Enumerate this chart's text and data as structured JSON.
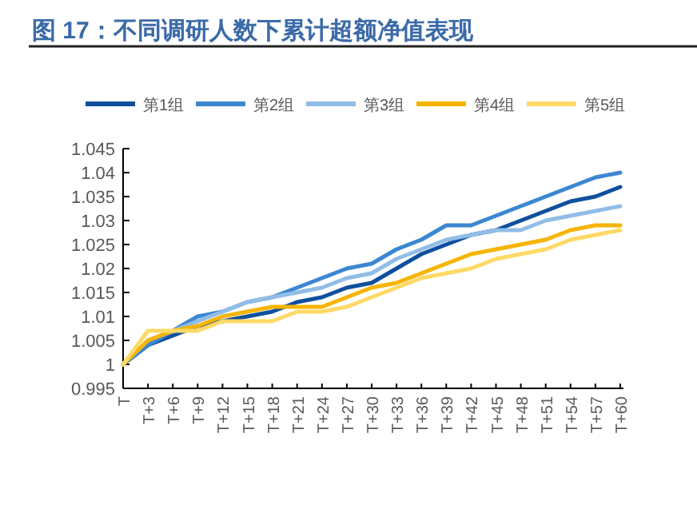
{
  "chart_data": {
    "type": "line",
    "title": "图 17：不同调研人数下累计超额净值表现",
    "categories": [
      "T",
      "T+3",
      "T+6",
      "T+9",
      "T+12",
      "T+15",
      "T+18",
      "T+21",
      "T+24",
      "T+27",
      "T+30",
      "T+33",
      "T+36",
      "T+39",
      "T+42",
      "T+45",
      "T+48",
      "T+51",
      "T+54",
      "T+57",
      "T+60"
    ],
    "series": [
      {
        "name": "第1组",
        "color": "#0f4f9e",
        "values": [
          1.0,
          1.004,
          1.006,
          1.008,
          1.009,
          1.01,
          1.011,
          1.013,
          1.014,
          1.016,
          1.017,
          1.02,
          1.023,
          1.025,
          1.027,
          1.028,
          1.03,
          1.032,
          1.034,
          1.035,
          1.037
        ]
      },
      {
        "name": "第2组",
        "color": "#3b87d2",
        "values": [
          1.0,
          1.004,
          1.007,
          1.01,
          1.011,
          1.013,
          1.014,
          1.016,
          1.018,
          1.02,
          1.021,
          1.024,
          1.026,
          1.029,
          1.029,
          1.031,
          1.033,
          1.035,
          1.037,
          1.039,
          1.04
        ]
      },
      {
        "name": "第3组",
        "color": "#91bde7",
        "values": [
          1.0,
          1.005,
          1.007,
          1.009,
          1.011,
          1.013,
          1.014,
          1.015,
          1.016,
          1.018,
          1.019,
          1.022,
          1.024,
          1.026,
          1.027,
          1.028,
          1.028,
          1.03,
          1.031,
          1.032,
          1.033
        ]
      },
      {
        "name": "第4组",
        "color": "#f5b400",
        "values": [
          1.0,
          1.005,
          1.007,
          1.008,
          1.01,
          1.011,
          1.012,
          1.012,
          1.012,
          1.014,
          1.016,
          1.017,
          1.019,
          1.021,
          1.023,
          1.024,
          1.025,
          1.026,
          1.028,
          1.029,
          1.029
        ]
      },
      {
        "name": "第5组",
        "color": "#ffd966",
        "values": [
          1.0,
          1.007,
          1.007,
          1.007,
          1.009,
          1.009,
          1.009,
          1.011,
          1.011,
          1.012,
          1.014,
          1.016,
          1.018,
          1.019,
          1.02,
          1.022,
          1.023,
          1.024,
          1.026,
          1.027,
          1.028
        ]
      }
    ],
    "ylim": [
      0.995,
      1.045
    ],
    "yticks": [
      0.995,
      1,
      1.005,
      1.01,
      1.015,
      1.02,
      1.025,
      1.03,
      1.035,
      1.04,
      1.045
    ],
    "grid": false,
    "legend": "top",
    "marker": "none",
    "line_style": "solid"
  }
}
